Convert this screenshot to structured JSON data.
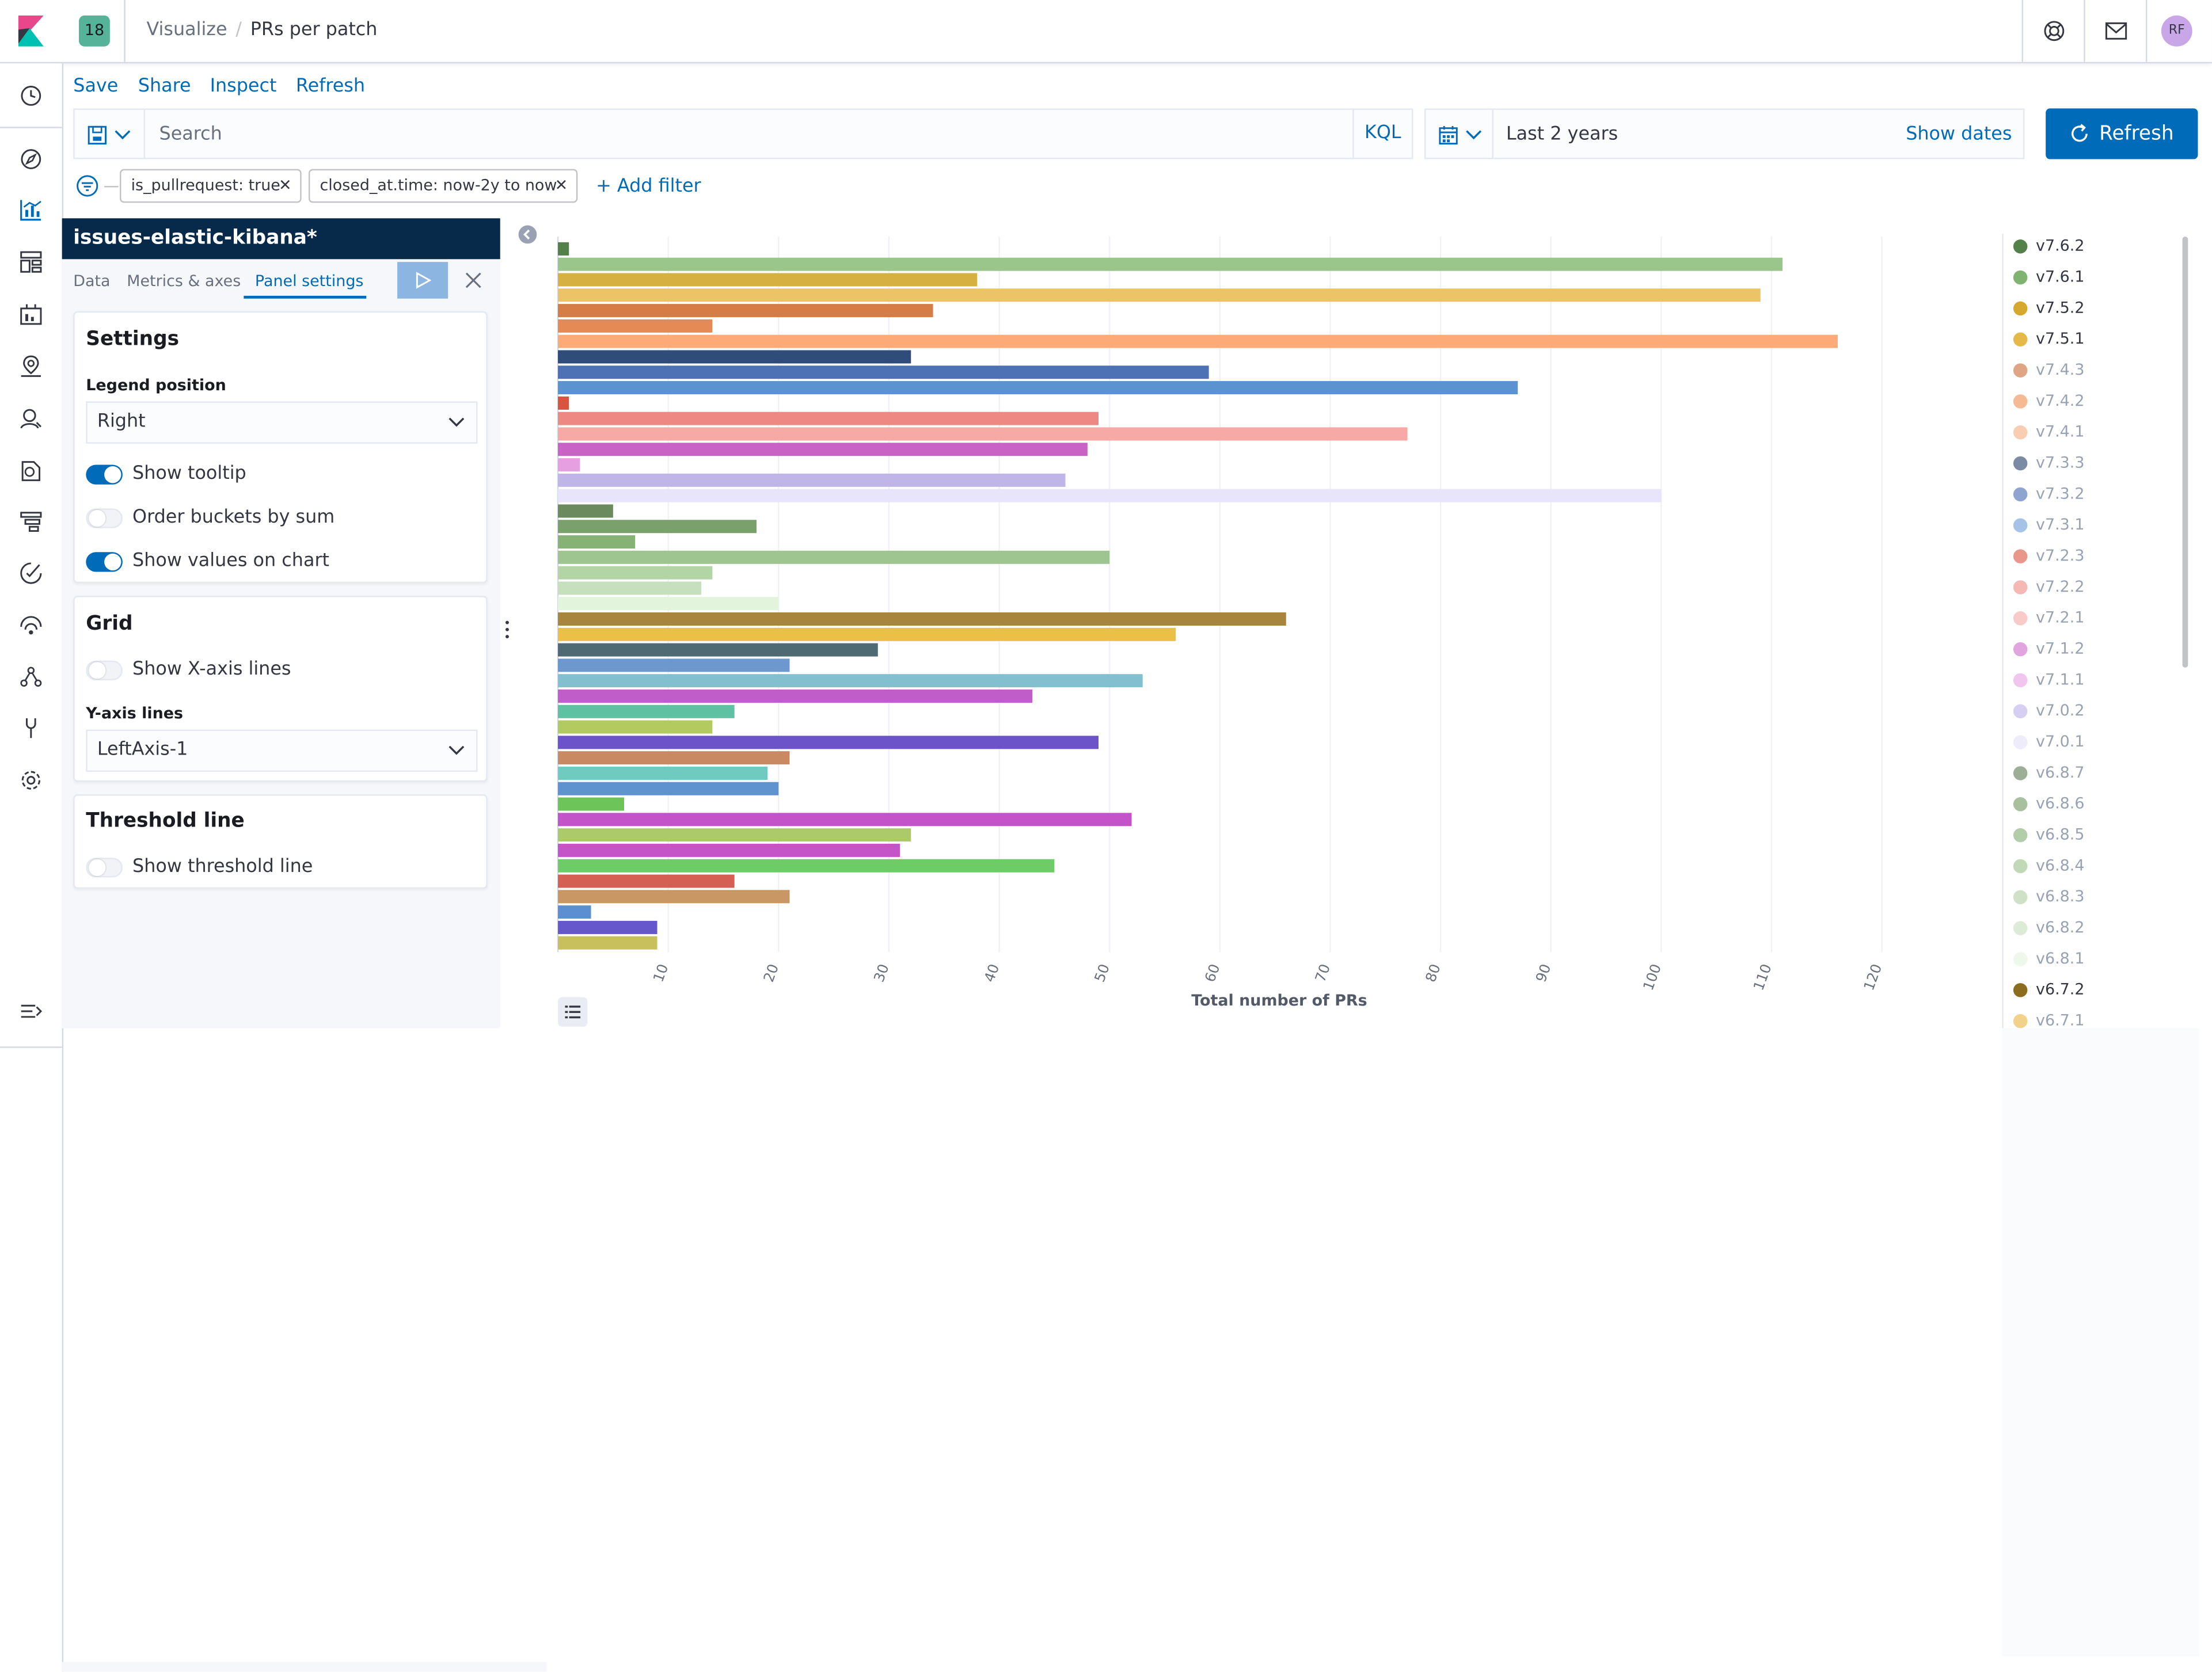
{
  "header": {
    "space_badge": "18",
    "breadcrumb": [
      "Visualize",
      "PRs per patch"
    ],
    "avatar_initials": "RF"
  },
  "top_menu": {
    "save": "Save",
    "share": "Share",
    "inspect": "Inspect",
    "refresh": "Refresh"
  },
  "query": {
    "placeholder": "Search",
    "language": "KQL"
  },
  "date": {
    "range": "Last 2 years",
    "show_dates": "Show dates"
  },
  "refresh_button": "Refresh",
  "filters": {
    "pills": [
      "is_pullrequest: true",
      "closed_at.time: now-2y to now"
    ],
    "add_label": "+ Add filter"
  },
  "editor": {
    "index_pattern": "issues-elastic-kibana*",
    "tabs": [
      "Data",
      "Metrics & axes",
      "Panel settings"
    ],
    "active_tab": "Panel settings",
    "settings": {
      "title": "Settings",
      "legend_position_label": "Legend position",
      "legend_position_value": "Right",
      "show_tooltip_label": "Show tooltip",
      "show_tooltip": true,
      "order_buckets_label": "Order buckets by sum",
      "order_buckets": false,
      "show_values_label": "Show values on chart",
      "show_values": true
    },
    "grid": {
      "title": "Grid",
      "show_x_label": "Show X-axis lines",
      "show_x": false,
      "y_lines_label": "Y-axis lines",
      "y_lines_value": "LeftAxis-1"
    },
    "threshold": {
      "title": "Threshold line",
      "show_label": "Show threshold line",
      "show": false
    }
  },
  "chart_data": {
    "type": "bar",
    "orientation": "horizontal",
    "xlabel": "Total number of PRs",
    "xlim": [
      0,
      130
    ],
    "xticks": [
      10,
      20,
      30,
      40,
      50,
      60,
      70,
      80,
      90,
      100,
      110,
      120
    ],
    "grid": true,
    "legend_position": "right",
    "series": [
      {
        "name": "v7.6.2",
        "value": 1,
        "color": "#54804a"
      },
      {
        "name": "v7.6.1",
        "value": 111,
        "color": "#9ac58b"
      },
      {
        "name": "v7.5.2",
        "value": 38,
        "color": "#d6b141"
      },
      {
        "name": "v7.5.1",
        "value": 109,
        "color": "#ecc366"
      },
      {
        "name": "v7.4.3",
        "value": 34,
        "color": "#d67d47"
      },
      {
        "name": "v7.4.2",
        "value": 14,
        "color": "#e68a55"
      },
      {
        "name": "v7.4.1",
        "value": 116,
        "color": "#fcaa78"
      },
      {
        "name": "v7.3.3",
        "value": 32,
        "color": "#2f4c7a"
      },
      {
        "name": "v7.3.2",
        "value": 59,
        "color": "#4e70b5"
      },
      {
        "name": "v7.3.1",
        "value": 87,
        "color": "#5b93d1"
      },
      {
        "name": "v7.2.3",
        "value": 1,
        "color": "#d9543f"
      },
      {
        "name": "v7.2.2",
        "value": 49,
        "color": "#ee8883"
      },
      {
        "name": "v7.2.1",
        "value": 77,
        "color": "#f6a9a5"
      },
      {
        "name": "v7.1.2",
        "value": 48,
        "color": "#c962c5"
      },
      {
        "name": "v7.1.1",
        "value": 2,
        "color": "#e6a0e2"
      },
      {
        "name": "v7.0.2",
        "value": 46,
        "color": "#c0b5e8"
      },
      {
        "name": "v7.0.1",
        "value": 100,
        "color": "#e8e4fb"
      },
      {
        "name": "v6.8.7",
        "value": 5,
        "color": "#6b8a5e"
      },
      {
        "name": "v6.8.6",
        "value": 18,
        "color": "#7aa16b"
      },
      {
        "name": "v6.8.5",
        "value": 7,
        "color": "#86b276"
      },
      {
        "name": "v6.8.4",
        "value": 50,
        "color": "#9ec58f"
      },
      {
        "name": "v6.8.3",
        "value": 14,
        "color": "#b3d5a6"
      },
      {
        "name": "v6.8.2",
        "value": 13,
        "color": "#c6dfbd"
      },
      {
        "name": "v6.8.1",
        "value": 20,
        "color": "#e2f5dc"
      },
      {
        "name": "v6.7.2",
        "value": 66,
        "color": "#a8853c"
      },
      {
        "name": "v6.7.1",
        "value": 56,
        "color": "#eac146"
      },
      {
        "name": "",
        "value": 29,
        "color": "#4f6a73"
      },
      {
        "name": "",
        "value": 21,
        "color": "#6d97cf"
      },
      {
        "name": "",
        "value": 53,
        "color": "#82bfcf"
      },
      {
        "name": "",
        "value": 43,
        "color": "#c05dc9"
      },
      {
        "name": "",
        "value": 16,
        "color": "#5dc1a2"
      },
      {
        "name": "",
        "value": 14,
        "color": "#b2ca60"
      },
      {
        "name": "",
        "value": 49,
        "color": "#6c53c9"
      },
      {
        "name": "",
        "value": 21,
        "color": "#c98a63"
      },
      {
        "name": "",
        "value": 19,
        "color": "#6fcbc0"
      },
      {
        "name": "",
        "value": 20,
        "color": "#5e93cf"
      },
      {
        "name": "",
        "value": 6,
        "color": "#6dc458"
      },
      {
        "name": "",
        "value": 52,
        "color": "#c452c9"
      },
      {
        "name": "",
        "value": 32,
        "color": "#adca6b"
      },
      {
        "name": "",
        "value": 31,
        "color": "#c454c7"
      },
      {
        "name": "",
        "value": 45,
        "color": "#6dcc66"
      },
      {
        "name": "",
        "value": 16,
        "color": "#d65f54"
      },
      {
        "name": "",
        "value": 21,
        "color": "#c99763"
      },
      {
        "name": "",
        "value": 3,
        "color": "#5c8fd1"
      },
      {
        "name": "",
        "value": 9,
        "color": "#6757cc"
      },
      {
        "name": "",
        "value": 9,
        "color": "#c7c05c"
      }
    ]
  },
  "legend": {
    "items": [
      {
        "label": "v7.6.2",
        "color": "#54804a"
      },
      {
        "label": "v7.6.1",
        "color": "#7fb36f"
      },
      {
        "label": "v7.5.2",
        "color": "#d6a92e"
      },
      {
        "label": "v7.5.1",
        "color": "#e6b84a"
      },
      {
        "label": "v7.4.3",
        "color": "#e0a584"
      },
      {
        "label": "v7.4.2",
        "color": "#f5b993"
      },
      {
        "label": "v7.4.1",
        "color": "#f9cdb1"
      },
      {
        "label": "v7.3.3",
        "color": "#7b8ba3"
      },
      {
        "label": "v7.3.2",
        "color": "#8fa4cf"
      },
      {
        "label": "v7.3.1",
        "color": "#a4c3e7"
      },
      {
        "label": "v7.2.3",
        "color": "#e8978a"
      },
      {
        "label": "v7.2.2",
        "color": "#f5b8b5"
      },
      {
        "label": "v7.2.1",
        "color": "#f8cbc9"
      },
      {
        "label": "v7.1.2",
        "color": "#e0a4de"
      },
      {
        "label": "v7.1.1",
        "color": "#f0c6ee"
      },
      {
        "label": "v7.0.2",
        "color": "#d6cff1"
      },
      {
        "label": "v7.0.1",
        "color": "#eeebfb"
      },
      {
        "label": "v6.8.7",
        "color": "#9cae95"
      },
      {
        "label": "v6.8.6",
        "color": "#a8c09d"
      },
      {
        "label": "v6.8.5",
        "color": "#b3cca9"
      },
      {
        "label": "v6.8.4",
        "color": "#c1d9b7"
      },
      {
        "label": "v6.8.3",
        "color": "#cfe2c7"
      },
      {
        "label": "v6.8.2",
        "color": "#dcebd6"
      },
      {
        "label": "v6.8.1",
        "color": "#eef8ea"
      },
      {
        "label": "v6.7.2",
        "color": "#8c6d1f"
      },
      {
        "label": "v6.7.1",
        "color": "#f2d18a"
      }
    ],
    "bold_labels": [
      "v7.6.2",
      "v7.6.1",
      "v7.5.2",
      "v7.5.1",
      "v6.7.2"
    ]
  }
}
